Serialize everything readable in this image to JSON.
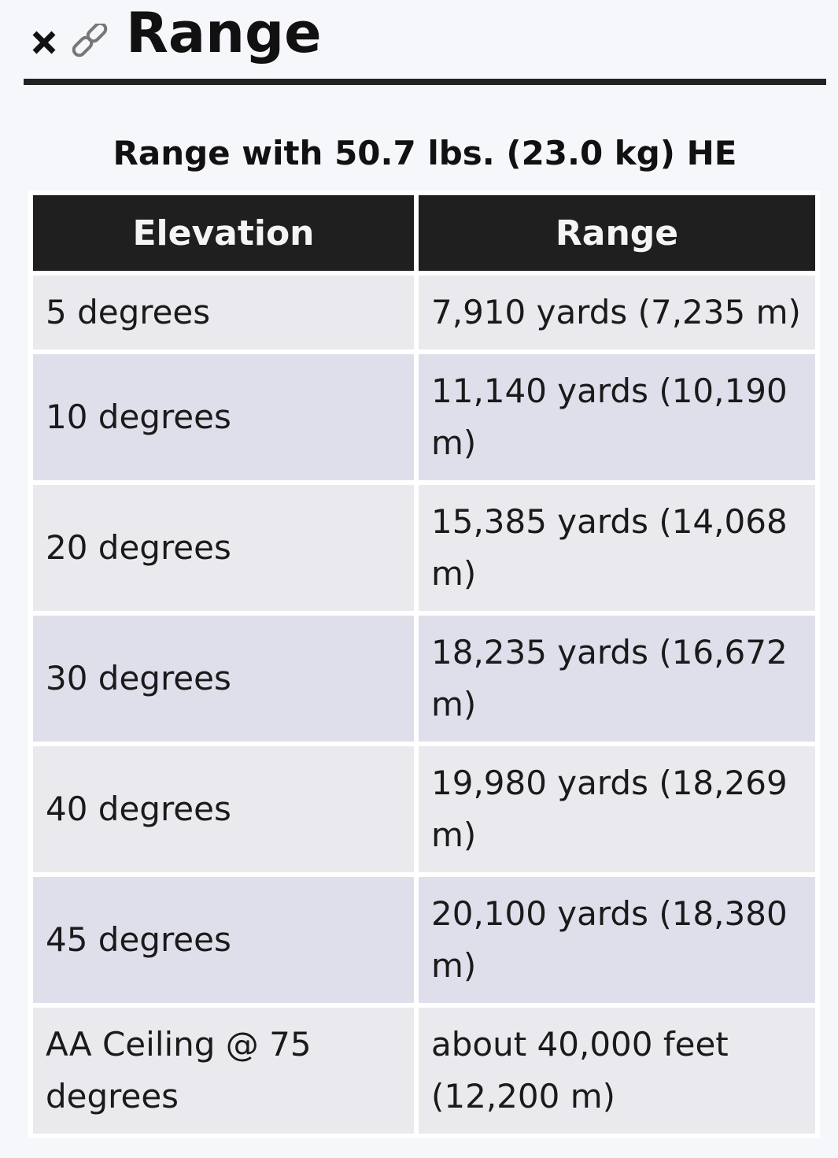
{
  "header": {
    "title": "Range"
  },
  "table": {
    "caption": "Range with 50.7 lbs. (23.0 kg) HE",
    "columns": [
      "Elevation",
      "Range"
    ],
    "rows": [
      [
        "5 degrees",
        "7,910 yards (7,235 m)"
      ],
      [
        "10 degrees",
        "11,140 yards (10,190 m)"
      ],
      [
        "20 degrees",
        "15,385 yards (14,068 m)"
      ],
      [
        "30 degrees",
        "18,235 yards (16,672 m)"
      ],
      [
        "40 degrees",
        "19,980 yards (18,269 m)"
      ],
      [
        "45 degrees",
        "20,100 yards (18,380 m)"
      ],
      [
        "AA Ceiling @ 75 degrees",
        "about 40,000 feet (12,200 m)"
      ]
    ]
  }
}
